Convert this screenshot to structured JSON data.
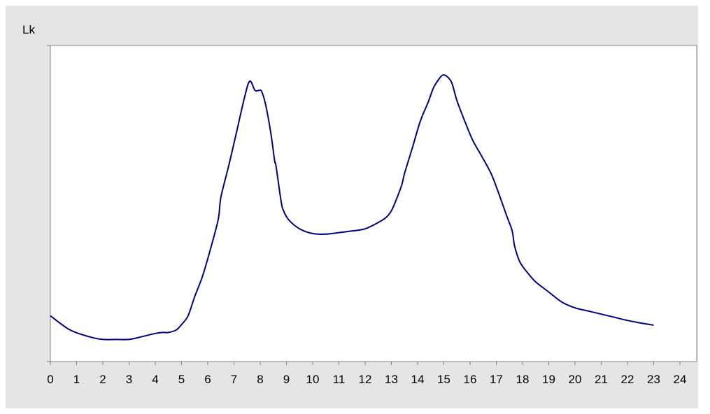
{
  "chart_data": {
    "type": "line",
    "title": "",
    "ylabel": "Lk",
    "xlabel": "",
    "xlim": [
      0,
      24
    ],
    "ylim": [
      0,
      100
    ],
    "x_tick_labels": [
      "0",
      "1",
      "2",
      "3",
      "4",
      "5",
      "6",
      "7",
      "8",
      "9",
      "10",
      "11",
      "12",
      "13",
      "14",
      "15",
      "16",
      "17",
      "18",
      "19",
      "20",
      "21",
      "22",
      "23",
      "24"
    ],
    "grid": false,
    "legend": "none",
    "colors": {
      "background": "#e5e5e5",
      "plot_area": "#ffffff",
      "line": "#000080",
      "axis": "#808080"
    },
    "series": [
      {
        "x": [
          0,
          0.75,
          1.5,
          2,
          2.5,
          3,
          3.5,
          4,
          4.3,
          4.5,
          4.8,
          5,
          5.25,
          5.5,
          5.8,
          6.1,
          6.4,
          6.5,
          6.8,
          7.1,
          7.4,
          7.6,
          7.8,
          7.95,
          8.05,
          8.2,
          8.4,
          8.55,
          8.6,
          8.8,
          8.9,
          9.1,
          9.5,
          10,
          10.5,
          11,
          11.5,
          12,
          12.5,
          12.8,
          13,
          13.2,
          13.4,
          13.5,
          13.8,
          14.1,
          14.4,
          14.6,
          14.8,
          14.95,
          15.1,
          15.3,
          15.5,
          15.8,
          16.1,
          16.4,
          16.8,
          17.1,
          17.4,
          17.6,
          17.7,
          17.9,
          18.2,
          18.5,
          19,
          19.5,
          20,
          20.5,
          21,
          21.5,
          22,
          22.5,
          23
        ],
        "y": [
          14.5,
          10,
          7.8,
          7,
          7,
          7,
          7.9,
          8.9,
          9.2,
          9.2,
          10,
          11.7,
          14.5,
          20.5,
          27,
          35.5,
          45,
          52,
          62,
          72.7,
          83.5,
          88.7,
          85.8,
          85.8,
          85.5,
          81.5,
          72.5,
          63.5,
          62,
          50.5,
          47.5,
          44.7,
          42,
          40.5,
          40.3,
          40.8,
          41.3,
          42,
          44,
          45.6,
          47.7,
          51.5,
          56,
          59.5,
          67.6,
          76,
          82,
          86.5,
          89.2,
          90.6,
          90.3,
          88.2,
          82.5,
          76,
          70,
          65.6,
          59.5,
          53,
          46,
          41.5,
          36.5,
          31.5,
          28,
          25.2,
          22,
          18.8,
          17,
          16,
          15,
          14,
          13,
          12.2,
          11.5
        ]
      }
    ]
  }
}
